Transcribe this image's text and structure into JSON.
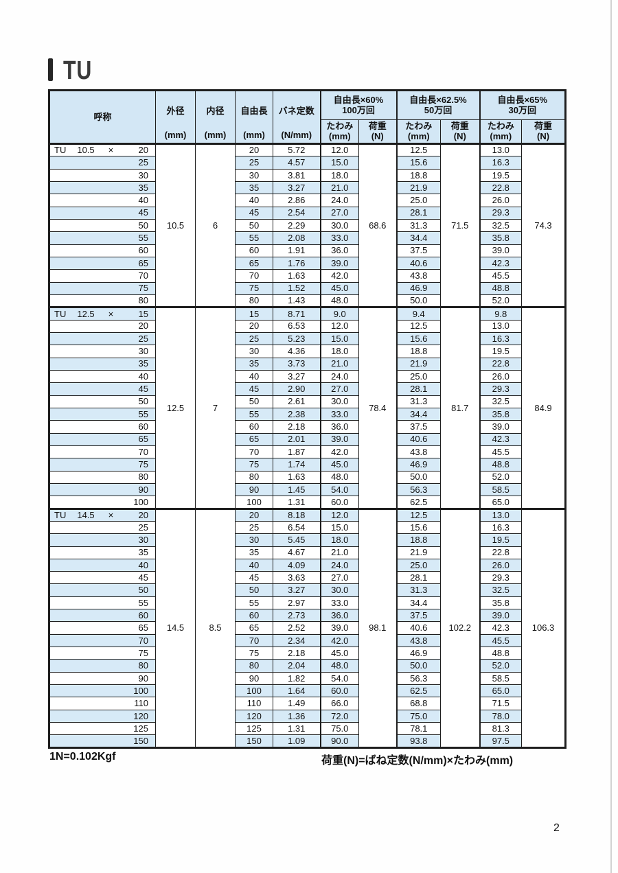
{
  "page": {
    "title": "TU",
    "page_number": "2",
    "footnote_left": "1N=0.102Kgf",
    "footnote_right": "荷重(N)=ばね定数(N/mm)×たわみ(mm)"
  },
  "colors": {
    "stripe": "#d7eaf7",
    "header_bg": "#d3e7f5",
    "border": "#1e1e1e"
  },
  "table": {
    "header": {
      "designation": "呼称",
      "outer_diameter": {
        "label": "外径",
        "unit": "(mm)"
      },
      "inner_diameter": {
        "label": "内径",
        "unit": "(mm)"
      },
      "free_length": {
        "label": "自由長",
        "unit": "(mm)"
      },
      "spring_rate": {
        "label": "バネ定数",
        "unit": "(N/mm)"
      },
      "groups": [
        {
          "condition": "自由長×60%",
          "cycles": "100万回",
          "deflection": "たわみ",
          "deflection_unit": "(mm)",
          "load": "荷重",
          "load_unit": "(N)"
        },
        {
          "condition": "自由長×62.5%",
          "cycles": "50万回",
          "deflection": "たわみ",
          "deflection_unit": "(mm)",
          "load": "荷重",
          "load_unit": "(N)"
        },
        {
          "condition": "自由長×65%",
          "cycles": "30万回",
          "deflection": "たわみ",
          "deflection_unit": "(mm)",
          "load": "荷重",
          "load_unit": "(N)"
        }
      ]
    },
    "series": [
      {
        "prefix": "TU",
        "diameter": "10.5",
        "times": "×",
        "outer_diameter": "10.5",
        "inner_diameter": "6",
        "loads": [
          "68.6",
          "71.5",
          "74.3"
        ],
        "first_row_shaded": false,
        "rows": [
          [
            "20",
            "5.72",
            "12.0",
            "12.5",
            "13.0"
          ],
          [
            "25",
            "4.57",
            "15.0",
            "15.6",
            "16.3"
          ],
          [
            "30",
            "3.81",
            "18.0",
            "18.8",
            "19.5"
          ],
          [
            "35",
            "3.27",
            "21.0",
            "21.9",
            "22.8"
          ],
          [
            "40",
            "2.86",
            "24.0",
            "25.0",
            "26.0"
          ],
          [
            "45",
            "2.54",
            "27.0",
            "28.1",
            "29.3"
          ],
          [
            "50",
            "2.29",
            "30.0",
            "31.3",
            "32.5"
          ],
          [
            "55",
            "2.08",
            "33.0",
            "34.4",
            "35.8"
          ],
          [
            "60",
            "1.91",
            "36.0",
            "37.5",
            "39.0"
          ],
          [
            "65",
            "1.76",
            "39.0",
            "40.6",
            "42.3"
          ],
          [
            "70",
            "1.63",
            "42.0",
            "43.8",
            "45.5"
          ],
          [
            "75",
            "1.52",
            "45.0",
            "46.9",
            "48.8"
          ],
          [
            "80",
            "1.43",
            "48.0",
            "50.0",
            "52.0"
          ]
        ]
      },
      {
        "prefix": "TU",
        "diameter": "12.5",
        "times": "×",
        "outer_diameter": "12.5",
        "inner_diameter": "7",
        "loads": [
          "78.4",
          "81.7",
          "84.9"
        ],
        "first_row_shaded": true,
        "rows": [
          [
            "15",
            "8.71",
            "9.0",
            "9.4",
            "9.8"
          ],
          [
            "20",
            "6.53",
            "12.0",
            "12.5",
            "13.0"
          ],
          [
            "25",
            "5.23",
            "15.0",
            "15.6",
            "16.3"
          ],
          [
            "30",
            "4.36",
            "18.0",
            "18.8",
            "19.5"
          ],
          [
            "35",
            "3.73",
            "21.0",
            "21.9",
            "22.8"
          ],
          [
            "40",
            "3.27",
            "24.0",
            "25.0",
            "26.0"
          ],
          [
            "45",
            "2.90",
            "27.0",
            "28.1",
            "29.3"
          ],
          [
            "50",
            "2.61",
            "30.0",
            "31.3",
            "32.5"
          ],
          [
            "55",
            "2.38",
            "33.0",
            "34.4",
            "35.8"
          ],
          [
            "60",
            "2.18",
            "36.0",
            "37.5",
            "39.0"
          ],
          [
            "65",
            "2.01",
            "39.0",
            "40.6",
            "42.3"
          ],
          [
            "70",
            "1.87",
            "42.0",
            "43.8",
            "45.5"
          ],
          [
            "75",
            "1.74",
            "45.0",
            "46.9",
            "48.8"
          ],
          [
            "80",
            "1.63",
            "48.0",
            "50.0",
            "52.0"
          ],
          [
            "90",
            "1.45",
            "54.0",
            "56.3",
            "58.5"
          ],
          [
            "100",
            "1.31",
            "60.0",
            "62.5",
            "65.0"
          ]
        ]
      },
      {
        "prefix": "TU",
        "diameter": "14.5",
        "times": "×",
        "outer_diameter": "14.5",
        "inner_diameter": "8.5",
        "loads": [
          "98.1",
          "102.2",
          "106.3"
        ],
        "first_row_shaded": true,
        "rows": [
          [
            "20",
            "8.18",
            "12.0",
            "12.5",
            "13.0"
          ],
          [
            "25",
            "6.54",
            "15.0",
            "15.6",
            "16.3"
          ],
          [
            "30",
            "5.45",
            "18.0",
            "18.8",
            "19.5"
          ],
          [
            "35",
            "4.67",
            "21.0",
            "21.9",
            "22.8"
          ],
          [
            "40",
            "4.09",
            "24.0",
            "25.0",
            "26.0"
          ],
          [
            "45",
            "3.63",
            "27.0",
            "28.1",
            "29.3"
          ],
          [
            "50",
            "3.27",
            "30.0",
            "31.3",
            "32.5"
          ],
          [
            "55",
            "2.97",
            "33.0",
            "34.4",
            "35.8"
          ],
          [
            "60",
            "2.73",
            "36.0",
            "37.5",
            "39.0"
          ],
          [
            "65",
            "2.52",
            "39.0",
            "40.6",
            "42.3"
          ],
          [
            "70",
            "2.34",
            "42.0",
            "43.8",
            "45.5"
          ],
          [
            "75",
            "2.18",
            "45.0",
            "46.9",
            "48.8"
          ],
          [
            "80",
            "2.04",
            "48.0",
            "50.0",
            "52.0"
          ],
          [
            "90",
            "1.82",
            "54.0",
            "56.3",
            "58.5"
          ],
          [
            "100",
            "1.64",
            "60.0",
            "62.5",
            "65.0"
          ],
          [
            "110",
            "1.49",
            "66.0",
            "68.8",
            "71.5"
          ],
          [
            "120",
            "1.36",
            "72.0",
            "75.0",
            "78.0"
          ],
          [
            "125",
            "1.31",
            "75.0",
            "78.1",
            "81.3"
          ],
          [
            "150",
            "1.09",
            "90.0",
            "93.8",
            "97.5"
          ]
        ]
      }
    ]
  }
}
